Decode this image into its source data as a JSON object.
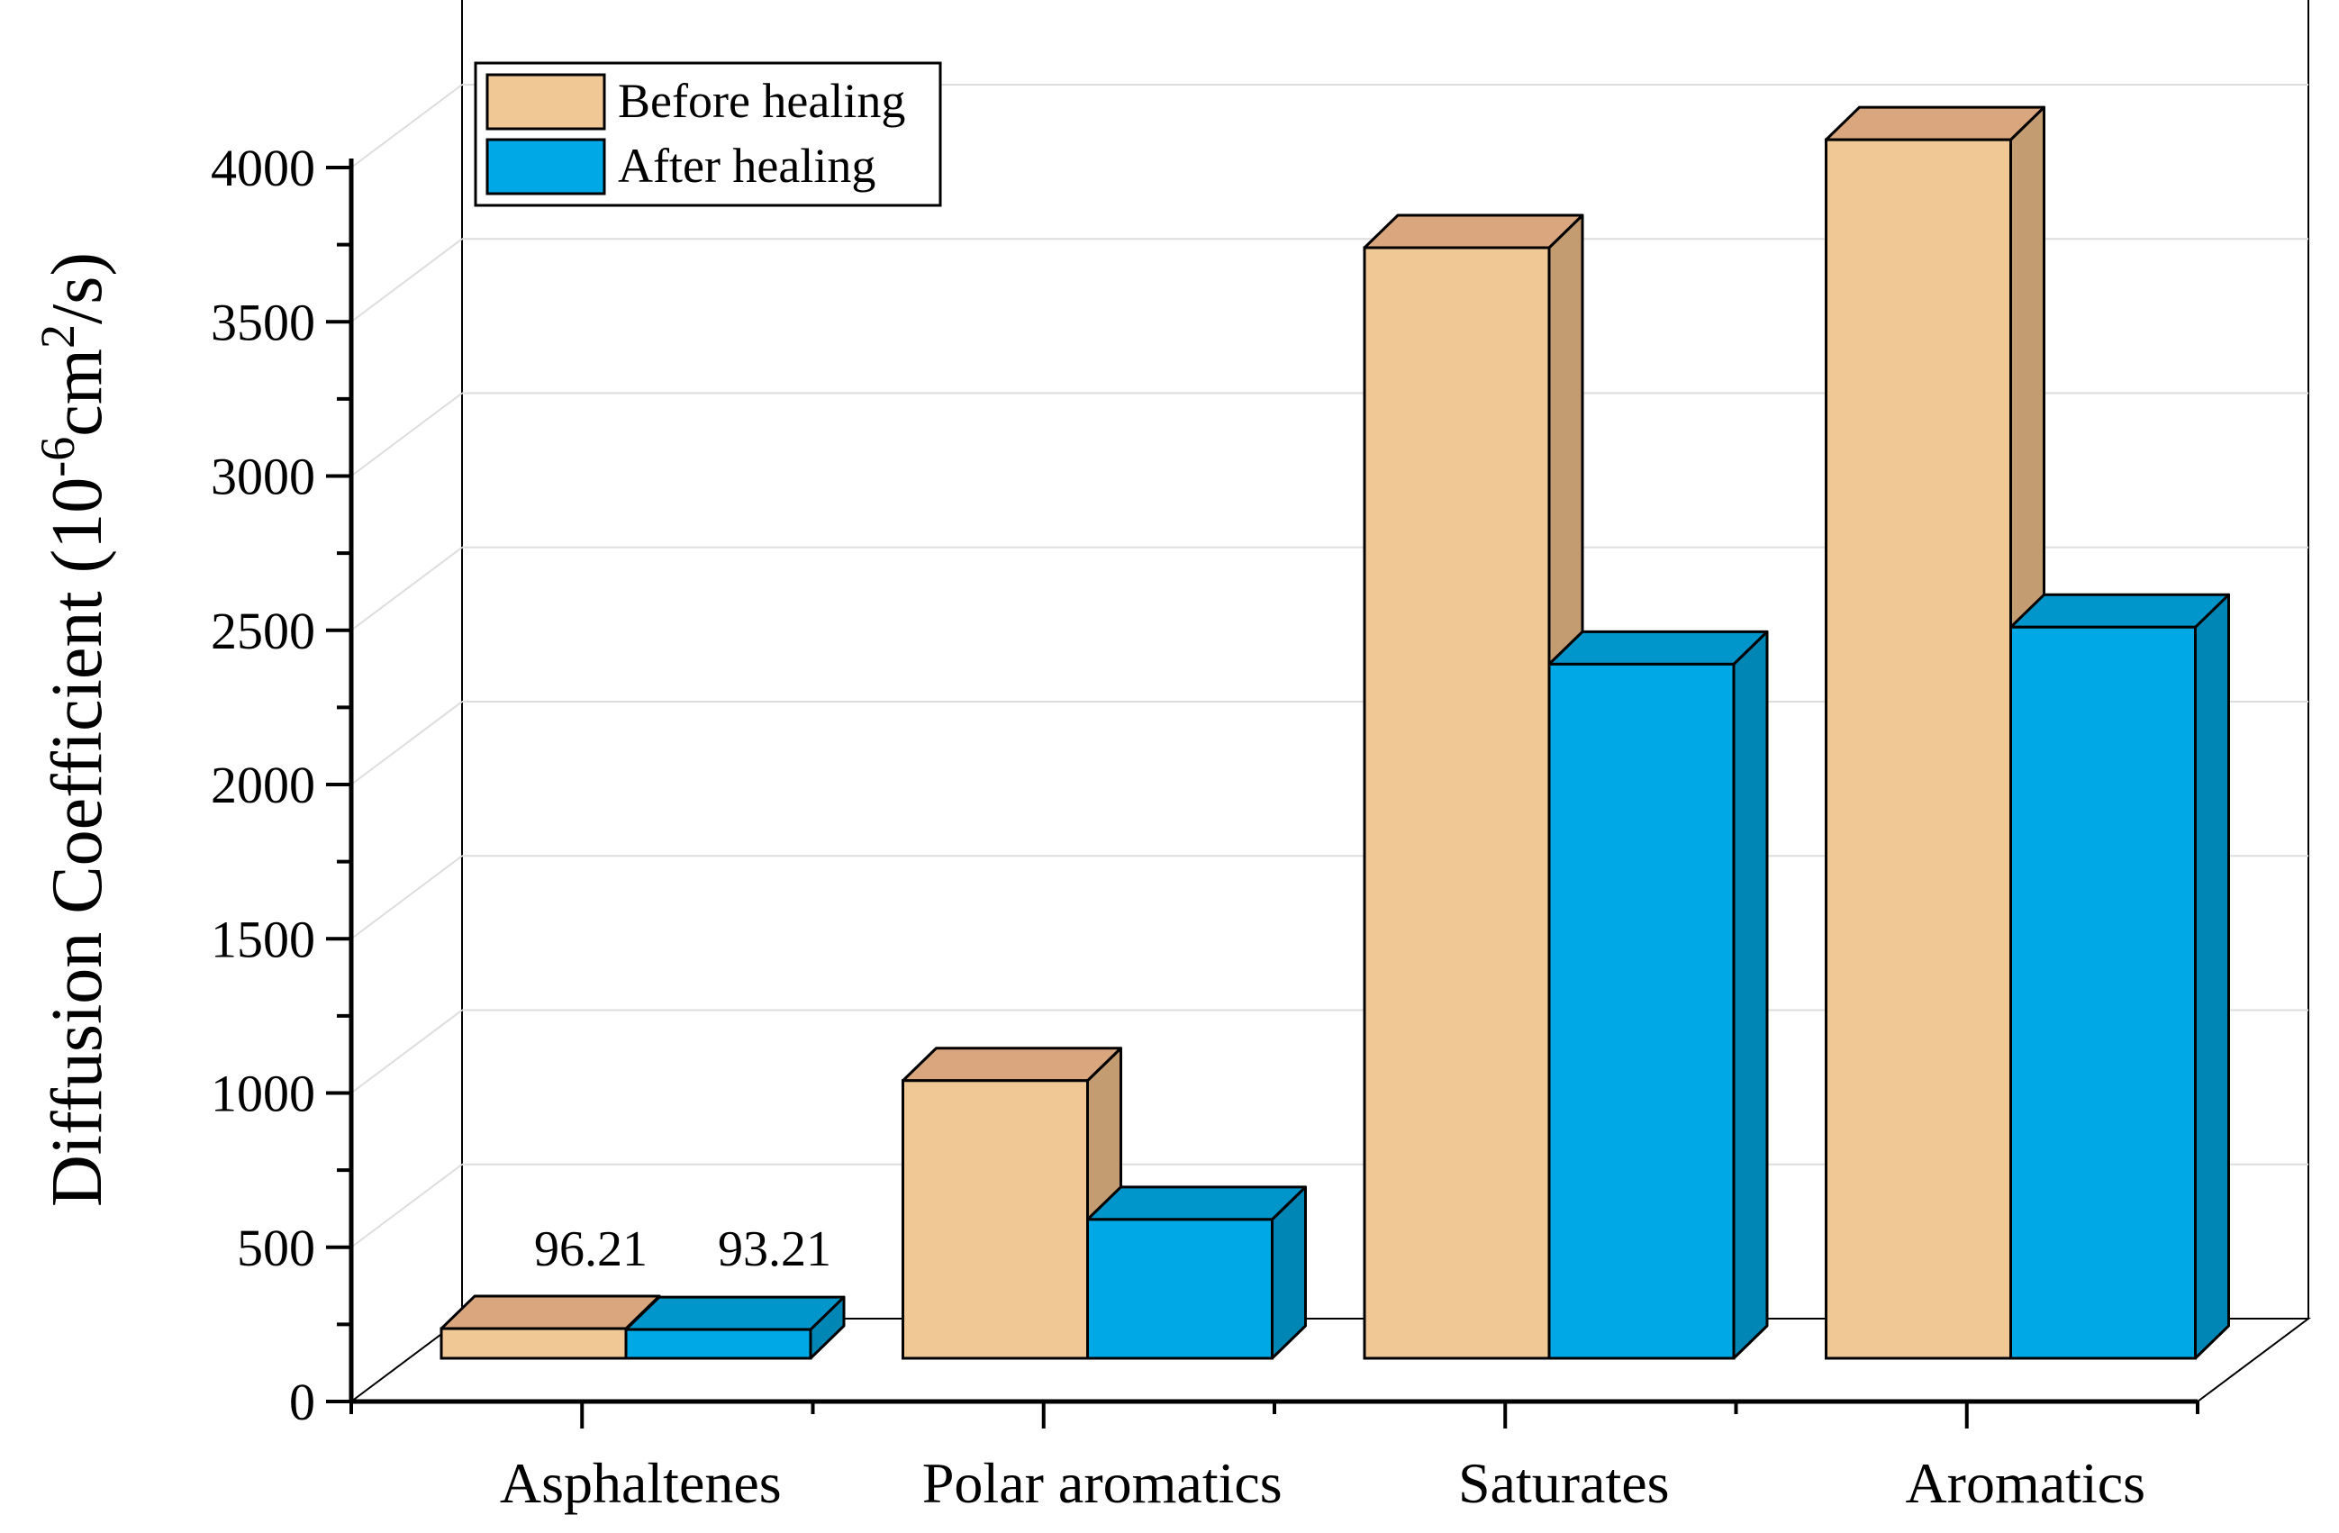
{
  "chart_data": {
    "type": "bar",
    "style": "3d-clustered",
    "categories": [
      "Asphaltenes",
      "Polar aromatics",
      "Saturates",
      "Aromatics"
    ],
    "series": [
      {
        "name": "Before healing",
        "values": [
          96.21,
          900,
          3600,
          3950
        ],
        "color": "#F0C896",
        "top_color": "#D9A67E",
        "side_color": "#C49C72"
      },
      {
        "name": "After healing",
        "values": [
          93.21,
          450,
          2250,
          2370
        ],
        "color": "#00A9E6",
        "top_color": "#0096CC",
        "side_color": "#0086B5"
      }
    ],
    "data_labels": [
      "96.21",
      "93.21"
    ],
    "ylabel_main": "Diffusion Coefficient (10",
    "ylabel_exp1": "-6",
    "ylabel_mid": "cm",
    "ylabel_exp2": "2",
    "ylabel_end": "/s)",
    "xlabel": "",
    "ylim": [
      0,
      4000
    ],
    "yticks": [
      "0",
      "500",
      "1000",
      "1500",
      "2000",
      "2500",
      "3000",
      "3500",
      "4000"
    ],
    "grid": true,
    "legend_position": "top-left"
  }
}
